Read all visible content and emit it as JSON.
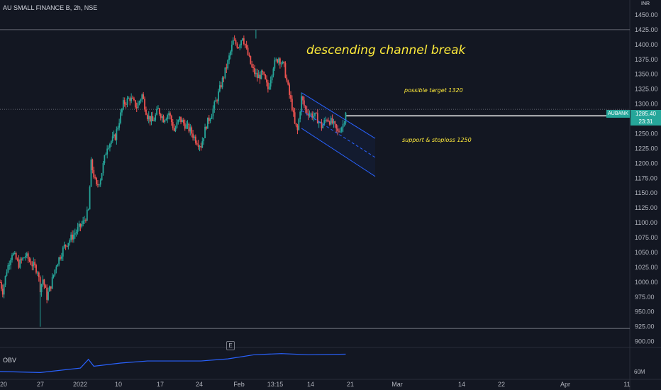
{
  "chart_data": {
    "type": "candlestick",
    "title": "AU SMALL FINANCE B, 2h, NSE",
    "currency": "INR",
    "y_axis": {
      "ticks": [
        900,
        925,
        950,
        975,
        1000,
        1025,
        1050,
        1075,
        1100,
        1125,
        1150,
        1175,
        1200,
        1225,
        1250,
        1275,
        1300,
        1325,
        1350,
        1375,
        1400,
        1425,
        1450
      ],
      "tick_labels": [
        "900.00",
        "925.00",
        "950.00",
        "975.00",
        "1000.00",
        "1025.00",
        "1050.00",
        "1075.00",
        "1100.00",
        "1125.00",
        "1150.00",
        "1175.00",
        "1200.00",
        "1225.00",
        "1250.00",
        "1275.00",
        "1300.00",
        "1325.00",
        "1350.00",
        "1375.00",
        "1400.00",
        "1425.00",
        "1450.00"
      ],
      "range": [
        890,
        1475
      ]
    },
    "x_axis": {
      "tick_labels": [
        "20",
        "27",
        "2022",
        "10",
        "17",
        "24",
        "Feb",
        "13:15",
        "14",
        "21",
        "Mar",
        "14",
        "22",
        "Apr",
        "11"
      ],
      "range_bars": [
        0,
        470
      ]
    },
    "series": [
      {
        "kind": "ohlc",
        "price_path": [
          [
            0,
            1000
          ],
          [
            2,
            985
          ],
          [
            5,
            1020
          ],
          [
            9,
            1050
          ],
          [
            14,
            1030
          ],
          [
            19,
            1045
          ],
          [
            24,
            1030
          ],
          [
            28,
            1020
          ],
          [
            30,
            990
          ],
          [
            32,
            1005
          ],
          [
            35,
            975
          ],
          [
            38,
            995
          ],
          [
            42,
            1030
          ],
          [
            48,
            1060
          ],
          [
            55,
            1080
          ],
          [
            62,
            1100
          ],
          [
            66,
            1120
          ],
          [
            68,
            1200
          ],
          [
            72,
            1160
          ],
          [
            75,
            1175
          ],
          [
            80,
            1230
          ],
          [
            86,
            1245
          ],
          [
            92,
            1300
          ],
          [
            97,
            1310
          ],
          [
            102,
            1295
          ],
          [
            106,
            1315
          ],
          [
            110,
            1280
          ],
          [
            114,
            1270
          ],
          [
            118,
            1290
          ],
          [
            122,
            1275
          ],
          [
            126,
            1285
          ],
          [
            130,
            1255
          ],
          [
            134,
            1275
          ],
          [
            138,
            1265
          ],
          [
            142,
            1255
          ],
          [
            146,
            1240
          ],
          [
            150,
            1230
          ],
          [
            154,
            1265
          ],
          [
            158,
            1285
          ],
          [
            162,
            1310
          ],
          [
            166,
            1340
          ],
          [
            170,
            1370
          ],
          [
            174,
            1405
          ],
          [
            178,
            1398
          ],
          [
            181,
            1415
          ],
          [
            184,
            1390
          ],
          [
            188,
            1360
          ],
          [
            192,
            1345
          ],
          [
            196,
            1350
          ],
          [
            200,
            1325
          ],
          [
            204,
            1365
          ],
          [
            208,
            1378
          ],
          [
            212,
            1362
          ],
          [
            216,
            1315
          ],
          [
            218,
            1295
          ],
          [
            220,
            1265
          ],
          [
            222,
            1255
          ],
          [
            225,
            1310
          ],
          [
            228,
            1290
          ],
          [
            232,
            1282
          ],
          [
            236,
            1278
          ],
          [
            240,
            1262
          ],
          [
            244,
            1276
          ],
          [
            248,
            1268
          ],
          [
            252,
            1252
          ],
          [
            256,
            1266
          ],
          [
            258,
            1284
          ]
        ]
      },
      {
        "name": "OBV",
        "kind": "line",
        "color": "#2962ff",
        "points": [
          [
            0,
            0.22
          ],
          [
            30,
            0.18
          ],
          [
            60,
            0.35
          ],
          [
            66,
            0.68
          ],
          [
            70,
            0.42
          ],
          [
            90,
            0.54
          ],
          [
            110,
            0.62
          ],
          [
            150,
            0.62
          ],
          [
            170,
            0.7
          ],
          [
            190,
            0.86
          ],
          [
            210,
            0.9
          ],
          [
            230,
            0.86
          ],
          [
            258,
            0.88
          ]
        ]
      }
    ],
    "horizontal_lines": [
      {
        "price": 1425,
        "color": "#787b86",
        "style": "solid"
      },
      {
        "price": 922,
        "color": "#787b86",
        "style": "solid"
      },
      {
        "price": 1291,
        "color": "#787b86",
        "style": "dotted"
      },
      {
        "price": 1280,
        "color": "#ffffff",
        "style": "solid",
        "from_bar": 258
      }
    ],
    "channel": {
      "upper": [
        [
          225,
          1319
        ],
        [
          280,
          1242
        ]
      ],
      "lower": [
        [
          225,
          1259
        ],
        [
          280,
          1178
        ]
      ],
      "mid": [
        [
          225,
          1289
        ],
        [
          280,
          1210
        ]
      ],
      "color": "#2962ff"
    },
    "annotations": {
      "title": "descending channel break",
      "target": "possible target 1320",
      "support": "support & stoploss 1250"
    },
    "last_price": {
      "symbol": "AUBANK",
      "price": "1285.40",
      "countdown": "23:31"
    },
    "obv_label": "OBV",
    "obv_scale_label": "60M",
    "earnings_marker": "E",
    "colors": {
      "up": "#26a69a",
      "down": "#ef5350",
      "background": "#131722",
      "grid": "#1e222d"
    }
  }
}
